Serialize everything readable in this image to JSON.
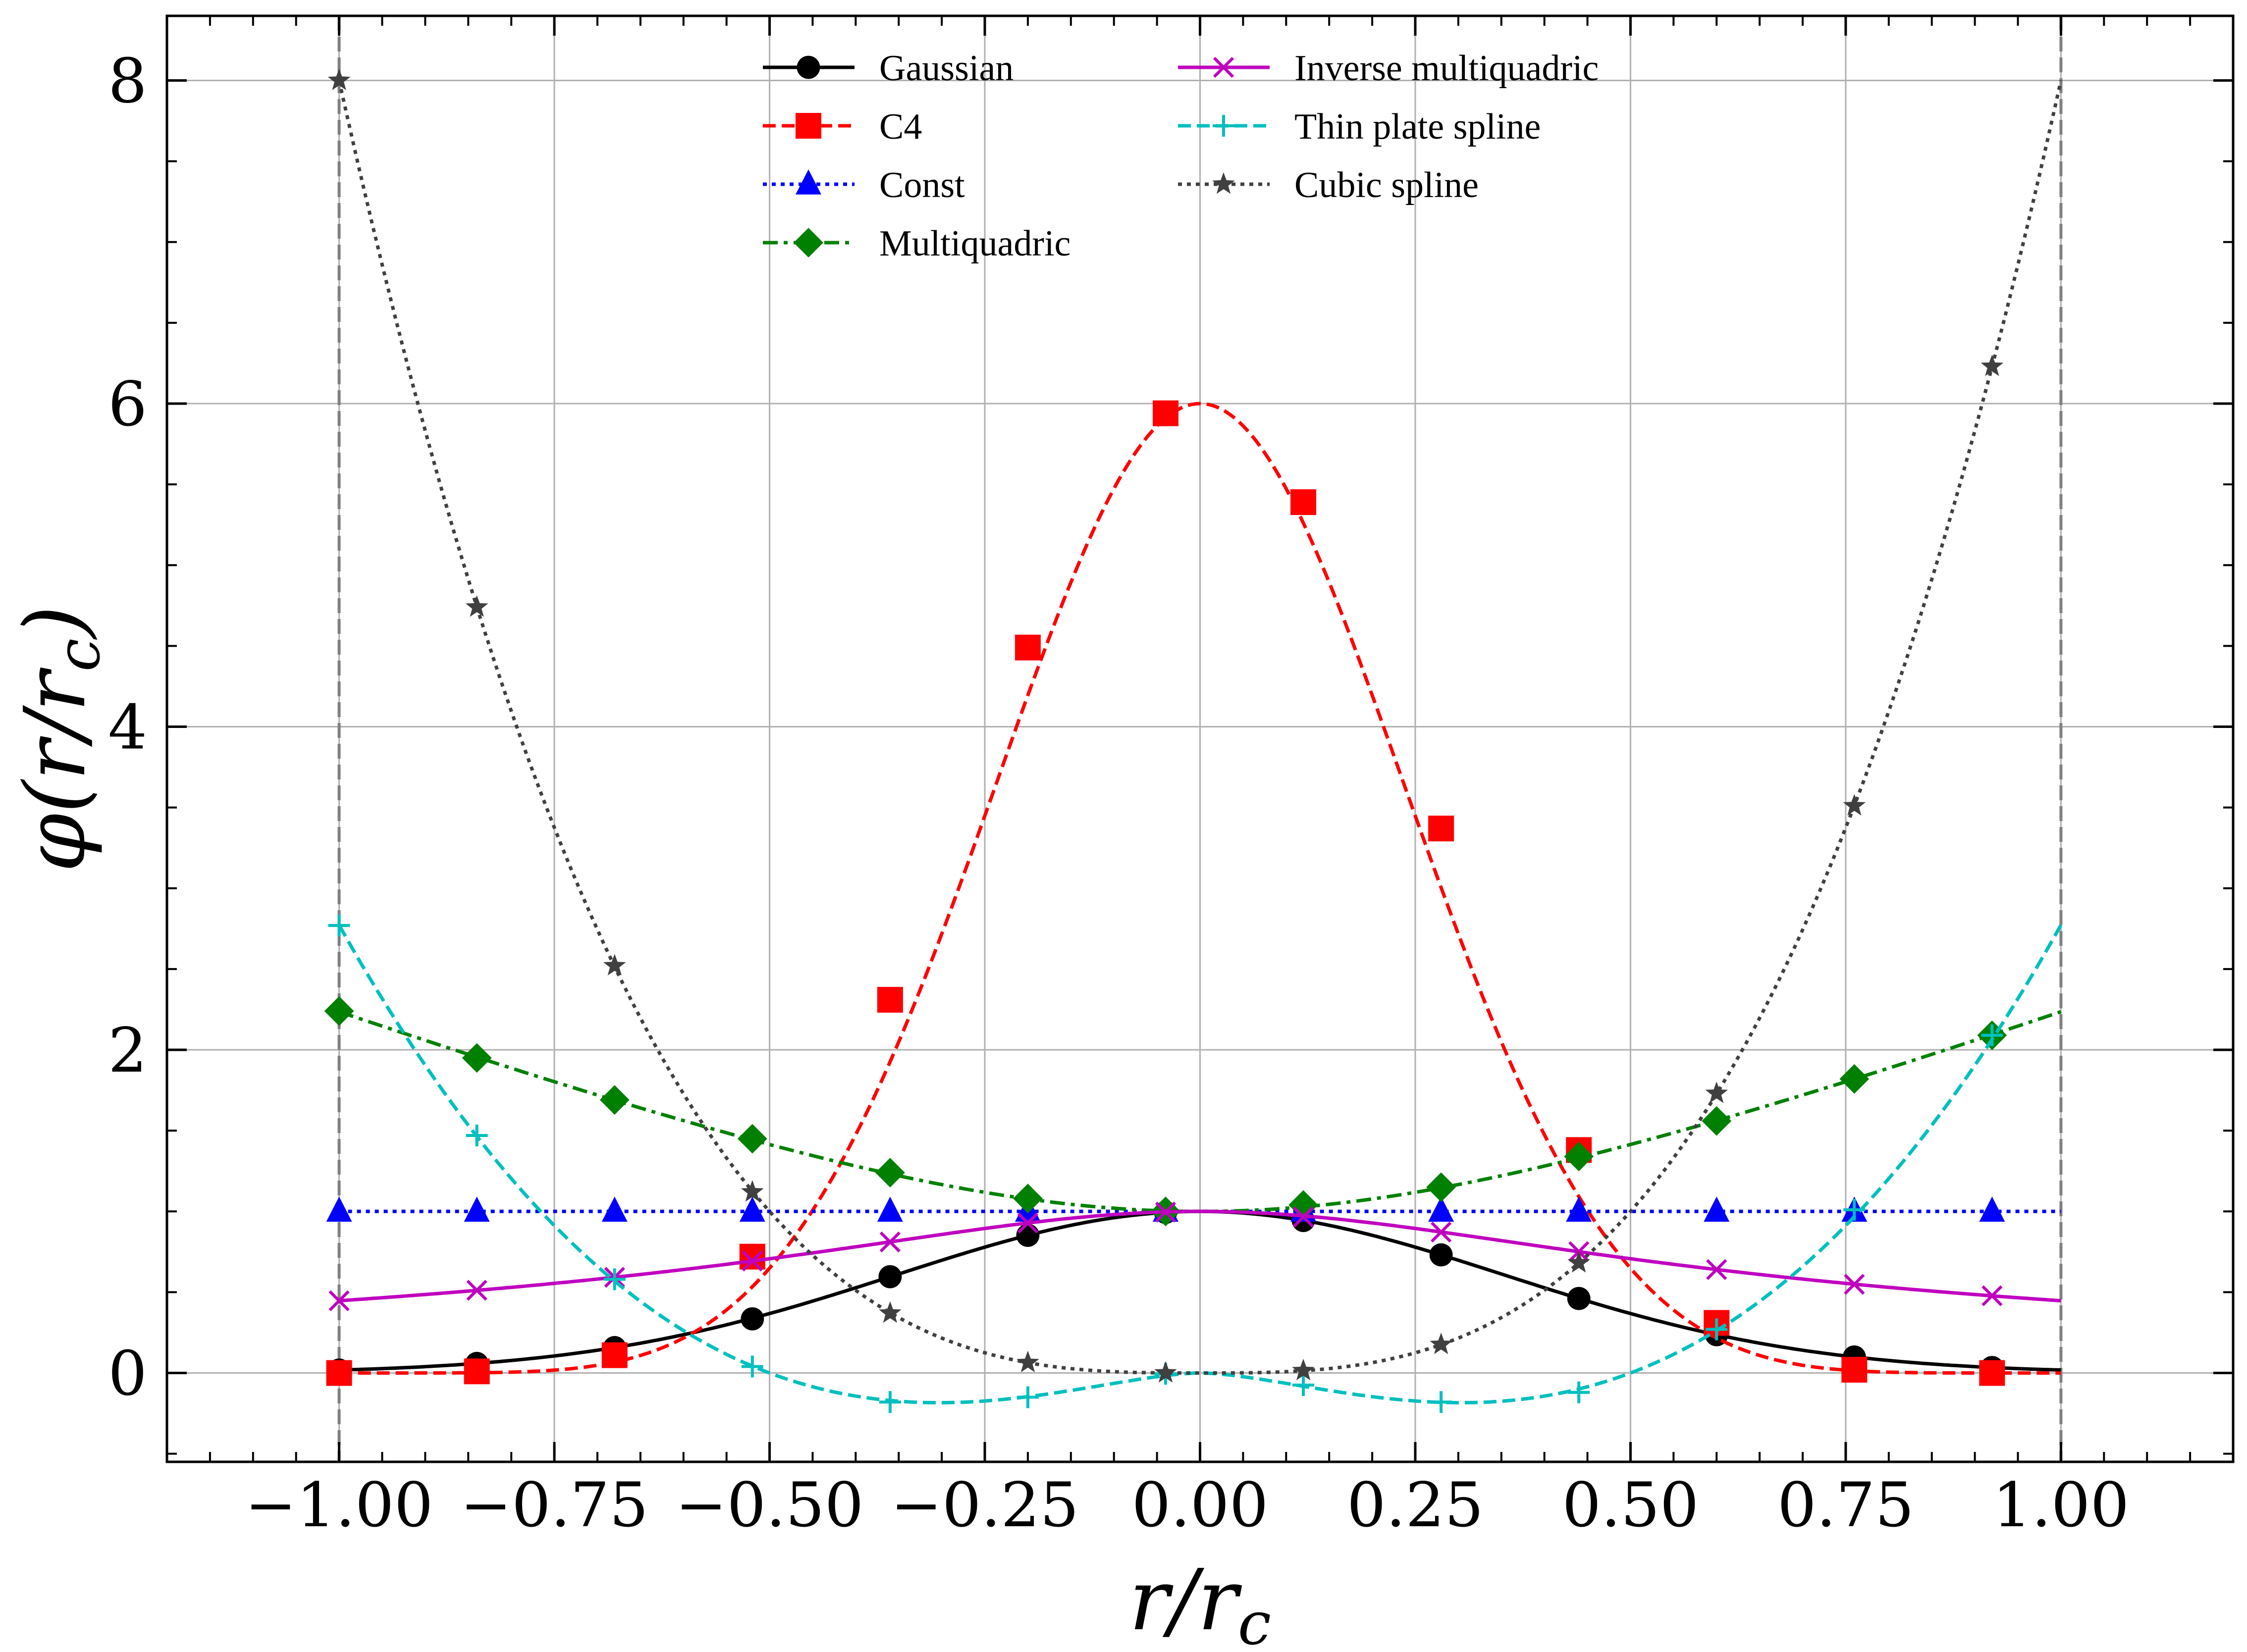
{
  "chart_data": {
    "type": "line",
    "xlabel": "r/r_c",
    "ylabel": "φ(r/r_c)",
    "xlim": [
      -1.2,
      1.2
    ],
    "ylim": [
      -0.55,
      8.4
    ],
    "xticks": [
      -1.0,
      -0.75,
      -0.5,
      -0.25,
      0.0,
      0.25,
      0.5,
      0.75,
      1.0
    ],
    "xtick_labels": [
      "−1.00",
      "−0.75",
      "−0.50",
      "−0.25",
      "0.00",
      "0.25",
      "0.50",
      "0.75",
      "1.00"
    ],
    "yticks": [
      0,
      2,
      4,
      6,
      8
    ],
    "ytick_labels": [
      "0",
      "2",
      "4",
      "6",
      "8"
    ],
    "grid": true,
    "vertical_reference_lines_x": [
      -1.0,
      1.0
    ],
    "legend_position": "top-center",
    "legend_columns": 2,
    "marker_x": [
      -1.0,
      -0.84,
      -0.68,
      -0.52,
      -0.36,
      -0.2,
      -0.04,
      0.12,
      0.28,
      0.44,
      0.6,
      0.76,
      0.92
    ],
    "series": [
      {
        "name": "Gaussian",
        "color": "#000000",
        "linestyle": "solid",
        "marker": "circle",
        "x": [
          -1.0,
          -0.84,
          -0.68,
          -0.52,
          -0.36,
          -0.2,
          -0.04,
          0.12,
          0.28,
          0.44,
          0.6,
          0.76,
          0.92
        ],
        "values": [
          0.018,
          0.059,
          0.157,
          0.335,
          0.596,
          0.852,
          0.994,
          0.944,
          0.731,
          0.461,
          0.237,
          0.099,
          0.034
        ]
      },
      {
        "name": "C4",
        "color": "#ff0000",
        "linestyle": "dashed",
        "marker": "square",
        "x": [
          -1.0,
          -0.84,
          -0.68,
          -0.52,
          -0.36,
          -0.2,
          -0.04,
          0.12,
          0.28,
          0.44,
          0.6,
          0.76,
          0.92
        ],
        "values": [
          0.0,
          0.01,
          0.11,
          0.72,
          2.31,
          4.49,
          5.94,
          5.39,
          3.37,
          1.38,
          0.31,
          0.02,
          0.0
        ]
      },
      {
        "name": "Const",
        "color": "#0000ff",
        "linestyle": "dotted",
        "marker": "triangle",
        "x": [
          -1.0,
          -0.84,
          -0.68,
          -0.52,
          -0.36,
          -0.2,
          -0.04,
          0.12,
          0.28,
          0.44,
          0.6,
          0.76,
          0.92
        ],
        "values": [
          1,
          1,
          1,
          1,
          1,
          1,
          1,
          1,
          1,
          1,
          1,
          1,
          1
        ]
      },
      {
        "name": "Multiquadric",
        "color": "#008000",
        "linestyle": "dashdot",
        "marker": "diamond",
        "x": [
          -1.0,
          -0.84,
          -0.68,
          -0.52,
          -0.36,
          -0.2,
          -0.04,
          0.12,
          0.28,
          0.44,
          0.6,
          0.76,
          0.92
        ],
        "values": [
          2.24,
          1.95,
          1.69,
          1.45,
          1.24,
          1.08,
          1.0,
          1.04,
          1.15,
          1.34,
          1.56,
          1.82,
          2.09
        ]
      },
      {
        "name": "Inverse multiquadric",
        "color": "#bf00bf",
        "linestyle": "solid",
        "marker": "x",
        "x": [
          -1.0,
          -0.84,
          -0.68,
          -0.52,
          -0.36,
          -0.2,
          -0.04,
          0.12,
          0.28,
          0.44,
          0.6,
          0.76,
          0.92
        ],
        "values": [
          0.447,
          0.512,
          0.592,
          0.693,
          0.811,
          0.928,
          0.996,
          0.966,
          0.872,
          0.751,
          0.64,
          0.549,
          0.478
        ]
      },
      {
        "name": "Thin plate spline",
        "color": "#00bfbf",
        "linestyle": "dashed",
        "marker": "plus",
        "x": [
          -1.0,
          -0.84,
          -0.68,
          -0.52,
          -0.36,
          -0.2,
          -0.04,
          0.12,
          0.28,
          0.44,
          0.6,
          0.76,
          0.92
        ],
        "values": [
          2.77,
          1.47,
          0.58,
          0.04,
          -0.18,
          -0.15,
          -0.005,
          -0.075,
          -0.18,
          -0.12,
          0.27,
          1.01,
          2.09
        ]
      },
      {
        "name": "Cubic spline",
        "color": "#404040",
        "linestyle": "dotted",
        "marker": "star",
        "x": [
          -1.0,
          -0.84,
          -0.68,
          -0.52,
          -0.36,
          -0.2,
          -0.04,
          0.12,
          0.28,
          0.44,
          0.6,
          0.76,
          0.92
        ],
        "values": [
          8.0,
          4.74,
          2.52,
          1.12,
          0.37,
          0.064,
          0.0,
          0.014,
          0.176,
          0.681,
          1.73,
          3.51,
          6.23
        ]
      }
    ]
  }
}
